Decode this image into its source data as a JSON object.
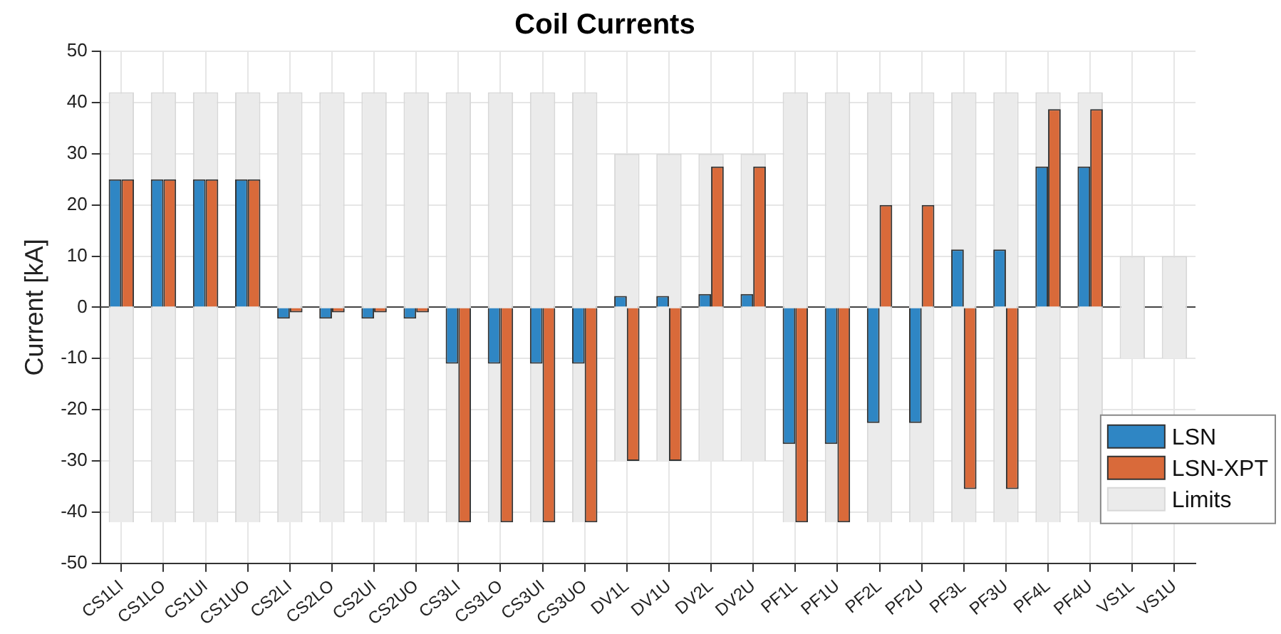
{
  "chart_data": {
    "type": "bar",
    "title": "Coil Currents",
    "ylabel": "Current [kA]",
    "categories": [
      "CS1LI",
      "CS1LO",
      "CS1UI",
      "CS1UO",
      "CS2LI",
      "CS2LO",
      "CS2UI",
      "CS2UO",
      "CS3LI",
      "CS3LO",
      "CS3UI",
      "CS3UO",
      "DV1L",
      "DV1U",
      "DV2L",
      "DV2U",
      "PF1L",
      "PF1U",
      "PF2L",
      "PF2U",
      "PF3L",
      "PF3U",
      "PF4L",
      "PF4U",
      "VS1L",
      "VS1U"
    ],
    "series": [
      {
        "name": "LSN",
        "color": "#2f86c4",
        "values": [
          25,
          25,
          25,
          25,
          -2.2,
          -2.2,
          -2.2,
          -2.2,
          -11,
          -11,
          -11,
          -11,
          2.2,
          2.2,
          2.6,
          2.6,
          -26.7,
          -26.7,
          -22.6,
          -22.6,
          11.3,
          11.3,
          27.5,
          27.5,
          0,
          0
        ]
      },
      {
        "name": "LSN-XPT",
        "color": "#d96a3a",
        "values": [
          25,
          25,
          25,
          25,
          -1,
          -1,
          -1,
          -1,
          -42,
          -42,
          -42,
          -42,
          -30,
          -30,
          27.5,
          27.5,
          -42,
          -42,
          20,
          20,
          -35.5,
          -35.5,
          38.7,
          38.7,
          0,
          0
        ]
      },
      {
        "name": "Limits",
        "color": "#ebebeb",
        "base": [
          -42,
          -42,
          -42,
          -42,
          -42,
          -42,
          -42,
          -42,
          -42,
          -42,
          -42,
          -42,
          -30,
          -30,
          -30,
          -30,
          -42,
          -42,
          -42,
          -42,
          -42,
          -42,
          -42,
          -42,
          -10,
          -10
        ],
        "values": [
          84,
          84,
          84,
          84,
          84,
          84,
          84,
          84,
          84,
          84,
          84,
          84,
          60,
          60,
          60,
          60,
          84,
          84,
          84,
          84,
          84,
          84,
          84,
          84,
          20,
          20
        ]
      }
    ],
    "ylim": [
      -50,
      50
    ],
    "yticks": [
      -50,
      -40,
      -30,
      -20,
      -10,
      0,
      10,
      20,
      30,
      40,
      50
    ],
    "grid": true,
    "legend": "bottom right"
  }
}
